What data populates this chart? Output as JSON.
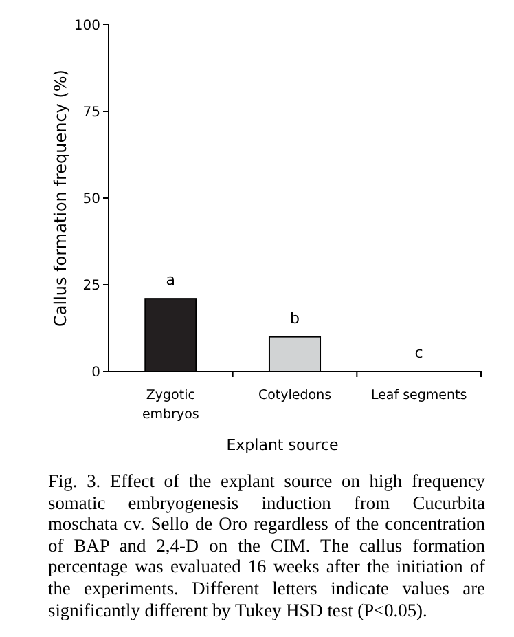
{
  "chart_data": {
    "type": "bar",
    "xlabel": "Explant source",
    "ylabel": "Callus formation frequency (%)",
    "categories": [
      "Zygotic embryos",
      "Cotyledons",
      "Leaf segments"
    ],
    "values": [
      21,
      10,
      0
    ],
    "colors": [
      "#231f20",
      "#d1d3d4",
      "#d1d3d4"
    ],
    "ylim": [
      0,
      100
    ],
    "yticks": [
      0,
      25,
      50,
      75,
      100
    ],
    "grid": false,
    "annotations": [
      "a",
      "b",
      "c",
      "Fig. 3. Effect of the explant source on high frequency somatic embryogenesis induction from Cucurbita moschata cv. Sello de Oro regardless of the concentration of BAP and 2,4-D on the CIM. The callus formation percentage was evaluated 16 weeks after the initiation of the experiments. Different letters indicate values are significantly different by  Tukey HSD test (P<0.05)."
    ]
  }
}
